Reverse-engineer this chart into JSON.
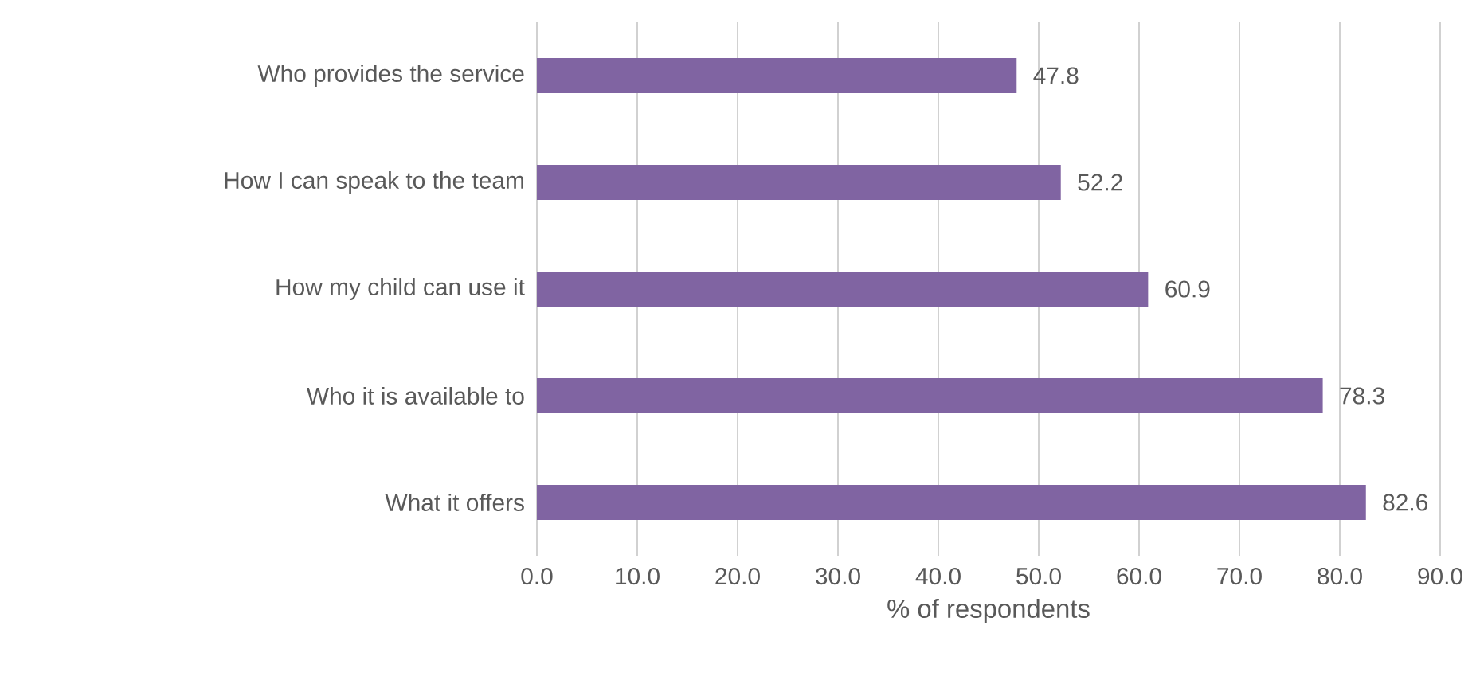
{
  "chart_data": {
    "type": "bar",
    "orientation": "horizontal",
    "categories": [
      "Who provides the service",
      "How I can speak to the team",
      "How my child can use it",
      "Who it is available to",
      "What it offers"
    ],
    "values": [
      47.8,
      52.2,
      60.9,
      78.3,
      82.6
    ],
    "color": "#8064a2",
    "xlabel": "% of respondents",
    "xlim": [
      0,
      90
    ],
    "xticks": [
      {
        "value": 0,
        "label": "0.0"
      },
      {
        "value": 10,
        "label": "10.0"
      },
      {
        "value": 20,
        "label": "20.0"
      },
      {
        "value": 30,
        "label": "30.0"
      },
      {
        "value": 40,
        "label": "40.0"
      },
      {
        "value": 50,
        "label": "50.0"
      },
      {
        "value": 60,
        "label": "60.0"
      },
      {
        "value": 70,
        "label": "70.0"
      },
      {
        "value": 80,
        "label": "80.0"
      },
      {
        "value": 90,
        "label": "90.0"
      }
    ],
    "grid": "x",
    "data_labels": true
  }
}
